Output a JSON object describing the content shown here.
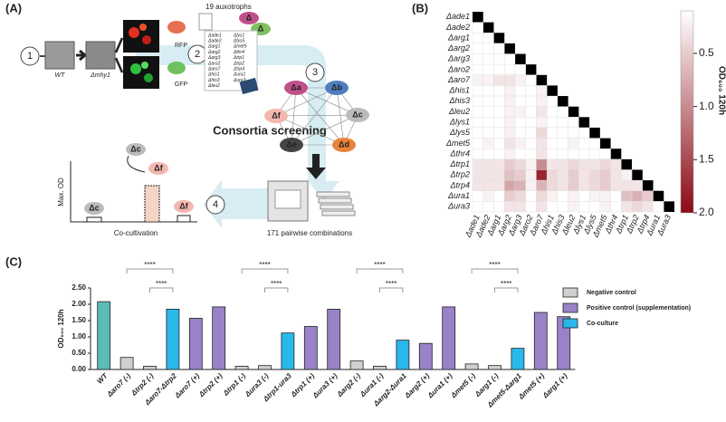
{
  "panel_a": {
    "label": "(A)",
    "steps": [
      "1",
      "2",
      "3",
      "4"
    ],
    "wt": "WT",
    "mutant": "Δmhy1",
    "rfp": "RFP",
    "gfp": "GFP",
    "auxotrophs": "19 auxotrophs",
    "delta": "Δ",
    "consortia": "Consortia screening",
    "nodes": [
      "Δa",
      "Δb",
      "Δc",
      "Δd",
      "Δe",
      "Δf"
    ],
    "pairwise": "171 pairwise combinations",
    "max_od": "Max. OD",
    "cocult_nodes": [
      "Δc",
      "Δf",
      "Δc",
      "Δf"
    ],
    "cocultivation": "Co-cultivation"
  },
  "panel_b": {
    "label": "(B)"
  },
  "panel_c": {
    "label": "(C)"
  },
  "chart_data": [
    {
      "type": "heatmap",
      "categories": [
        "Δade1",
        "Δade2",
        "Δarg1",
        "Δarg2",
        "Δarg3",
        "Δaro2",
        "Δaro7",
        "Δhis1",
        "Δhis3",
        "Δleu2",
        "Δlys1",
        "Δlys5",
        "Δmet5",
        "Δthr4",
        "Δtrp1",
        "Δtrp2",
        "Δtrp4",
        "Δura1",
        "Δura3"
      ],
      "values": [
        [],
        [
          0.1
        ],
        [
          0.1,
          0.1
        ],
        [
          0.1,
          0.1,
          0.1
        ],
        [
          0.1,
          0.1,
          0.1,
          0.1
        ],
        [
          0.1,
          0.1,
          0.1,
          0.1,
          0.1
        ],
        [
          0.2,
          0.2,
          0.3,
          0.3,
          0.2,
          0.1
        ],
        [
          0.1,
          0.1,
          0.1,
          0.2,
          0.1,
          0.1,
          0.2
        ],
        [
          0.1,
          0.1,
          0.1,
          0.2,
          0.1,
          0.1,
          0.2,
          0.1
        ],
        [
          0.1,
          0.1,
          0.1,
          0.2,
          0.2,
          0.1,
          0.3,
          0.1,
          0.1
        ],
        [
          0.1,
          0.1,
          0.1,
          0.2,
          0.1,
          0.1,
          0.2,
          0.1,
          0.1,
          0.1
        ],
        [
          0.1,
          0.1,
          0.1,
          0.2,
          0.1,
          0.1,
          0.4,
          0.1,
          0.1,
          0.1,
          0.1
        ],
        [
          0.1,
          0.2,
          0.1,
          0.3,
          0.2,
          0.1,
          0.3,
          0.1,
          0.1,
          0.2,
          0.1,
          0.1
        ],
        [
          0.1,
          0.1,
          0.1,
          0.2,
          0.1,
          0.1,
          0.3,
          0.1,
          0.1,
          0.1,
          0.1,
          0.1,
          0.1
        ],
        [
          0.3,
          0.3,
          0.3,
          0.5,
          0.4,
          0.2,
          1.0,
          0.3,
          0.3,
          0.4,
          0.3,
          0.3,
          0.4,
          0.3
        ],
        [
          0.3,
          0.3,
          0.3,
          0.6,
          0.5,
          0.2,
          1.8,
          0.4,
          0.3,
          0.5,
          0.3,
          0.4,
          0.5,
          0.3,
          0.2
        ],
        [
          0.3,
          0.3,
          0.3,
          0.8,
          0.7,
          0.2,
          0.7,
          0.4,
          0.3,
          0.5,
          0.3,
          0.4,
          0.5,
          0.3,
          0.3,
          0.3
        ],
        [
          0.1,
          0.2,
          0.1,
          0.5,
          0.4,
          0.1,
          0.4,
          0.2,
          0.1,
          0.2,
          0.1,
          0.2,
          0.2,
          0.1,
          0.6,
          0.7,
          0.5
        ],
        [
          0.1,
          0.1,
          0.1,
          0.3,
          0.3,
          0.1,
          0.3,
          0.1,
          0.1,
          0.2,
          0.1,
          0.1,
          0.2,
          0.1,
          0.3,
          0.4,
          0.3,
          0.1
        ]
      ],
      "colormap": [
        "#ffffff",
        "#8b0a14"
      ],
      "diagonal_color": "#000000",
      "colorbar_label": "OD₆₀₀ 120h",
      "clim": [
        0.1,
        2.0
      ],
      "cticks": [
        0.5,
        {
          "value": 1,
          "label": "1.0"
        },
        1.5,
        {
          "value": 2,
          "label": "2.0"
        }
      ]
    },
    {
      "type": "bar",
      "categories": [
        "WT",
        "Δaro7 (-)",
        "Δtrp2 (-)",
        "Δaro7-Δtrp2",
        "Δaro7 (+)",
        "Δtrp2 (+)",
        "Δtrp1 (-)",
        "Δura3 (-)",
        "Δtrp1-ura3",
        "Δtrp1 (+)",
        "Δura3 (+)",
        "Δarg2 (-)",
        "Δura1 (-)",
        "Δarg2-Δura1",
        "Δarg2 (+)",
        "Δura1 (+)",
        "Δmet5 (-)",
        "Δarg1 (-)",
        "Δmet5-Δarg1",
        "Δmet5 (+)",
        "Δarg1 (+)"
      ],
      "values": [
        2.08,
        0.37,
        0.1,
        1.85,
        1.57,
        1.92,
        0.1,
        0.12,
        1.12,
        1.32,
        1.85,
        0.26,
        0.1,
        0.9,
        0.8,
        1.92,
        0.17,
        0.12,
        0.65,
        1.75,
        1.62
      ],
      "colors": [
        "#5bbcb8",
        "#d0d0d0",
        "#d0d0d0",
        "#2ab8ea",
        "#9a82c8",
        "#9a82c8",
        "#d0d0d0",
        "#d0d0d0",
        "#2ab8ea",
        "#9a82c8",
        "#9a82c8",
        "#d0d0d0",
        "#d0d0d0",
        "#2ab8ea",
        "#9a82c8",
        "#9a82c8",
        "#d0d0d0",
        "#d0d0d0",
        "#2ab8ea",
        "#9a82c8",
        "#9a82c8"
      ],
      "ylabel": "OD₆₀₀ 120h",
      "ylim": [
        0,
        2.5
      ],
      "yticks": [
        {
          "value": 0,
          "label": "0.00"
        },
        {
          "value": 0.5,
          "label": "0.50"
        },
        {
          "value": 1,
          "label": "1.00"
        },
        {
          "value": 1.5,
          "label": "1.50"
        },
        {
          "value": 2,
          "label": "2.00"
        },
        {
          "value": 2.5,
          "label": "2.50"
        }
      ],
      "significance": [
        "****",
        "****",
        "****",
        "****",
        "****",
        "****",
        "****",
        "****"
      ],
      "legend": [
        {
          "name": "Negative control",
          "color": "#d0d0d0"
        },
        {
          "name": "Positive control (supplementation)",
          "color": "#9a82c8"
        },
        {
          "name": "Co-culture",
          "color": "#2ab8ea"
        }
      ]
    }
  ]
}
